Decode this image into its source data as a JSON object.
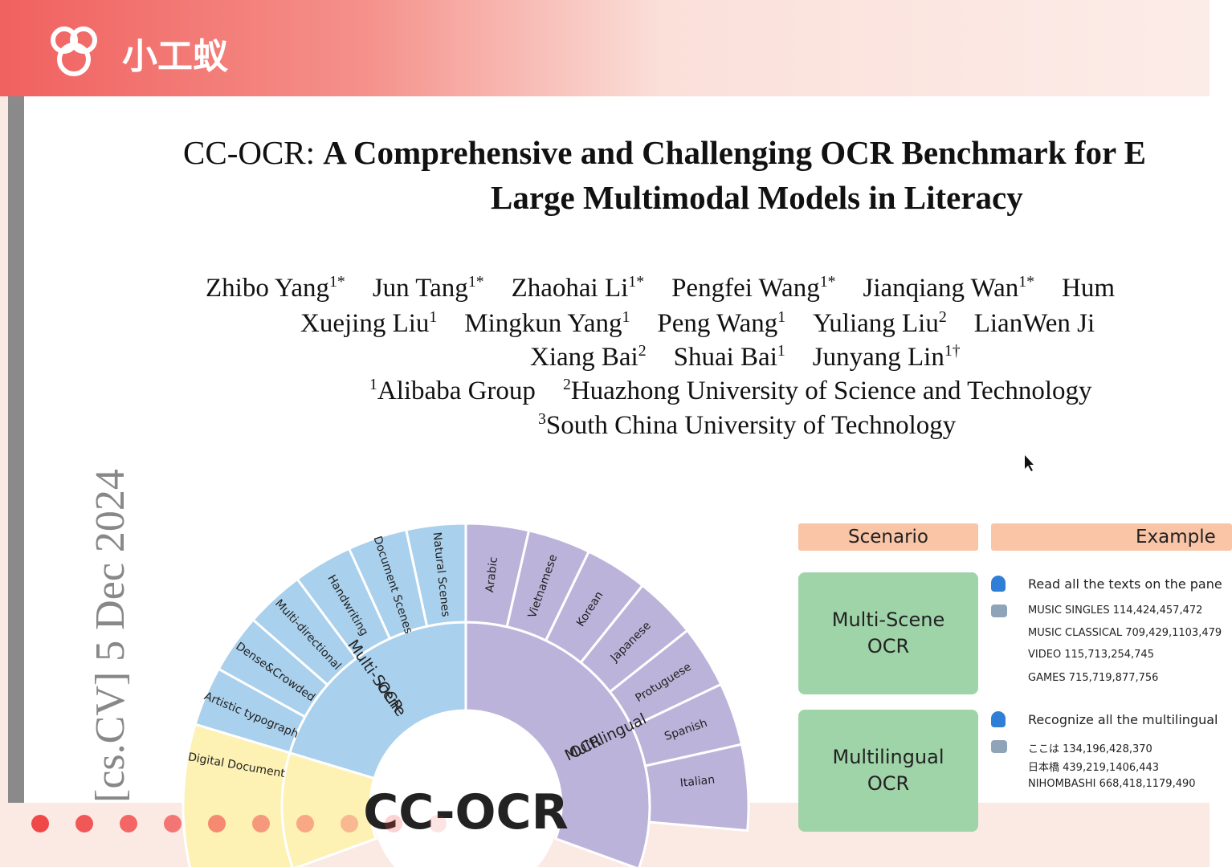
{
  "header": {
    "brand": "小工蚁"
  },
  "paper": {
    "title": {
      "prefix": "CC-OCR:",
      "line1": "A Comprehensive and Challenging OCR Benchmark for E",
      "line2": "Large Multimodal Models in Literacy"
    },
    "authors": [
      [
        {
          "name": "Zhibo Yang",
          "sup": "1*"
        },
        {
          "name": "Jun Tang",
          "sup": "1*"
        },
        {
          "name": "Zhaohai Li",
          "sup": "1*"
        },
        {
          "name": "Pengfei Wang",
          "sup": "1*"
        },
        {
          "name": "Jianqiang Wan",
          "sup": "1*"
        },
        {
          "name": "Hum"
        }
      ],
      [
        {
          "name": "Xuejing Liu",
          "sup": "1"
        },
        {
          "name": "Mingkun Yang",
          "sup": "1"
        },
        {
          "name": "Peng Wang",
          "sup": "1"
        },
        {
          "name": "Yuliang Liu",
          "sup": "2"
        },
        {
          "name": "LianWen Ji"
        }
      ],
      [
        {
          "name": "Xiang Bai",
          "sup": "2"
        },
        {
          "name": "Shuai Bai",
          "sup": "1"
        },
        {
          "name": "Junyang Lin",
          "sup": "1†"
        }
      ]
    ],
    "affiliations": [
      [
        {
          "sup": "1",
          "name": "Alibaba Group"
        },
        {
          "sup": "2",
          "name": "Huazhong University of Science and Technology"
        }
      ],
      [
        {
          "sup": "3",
          "name": "South China University of Technology"
        }
      ]
    ],
    "arxiv_stamp": "[cs.CV]  5 Dec 2024"
  },
  "figure": {
    "center": "CC-OCR",
    "inner": [
      {
        "lines": [
          "Multi-Scene",
          "OCR"
        ]
      },
      {
        "lines": [
          "Multilingual",
          "OCR"
        ]
      }
    ],
    "outer_left": [
      "Natural Scenes",
      "Document Scenes",
      "Handwriting",
      "Multi-directional",
      "Dense&Crowded",
      "Artistic typograph",
      "Digital Document"
    ],
    "outer_right": [
      "Arabic",
      "Vietnamese",
      "Korean",
      "Japanese",
      "Protuguese",
      "Spanish",
      "Italian"
    ]
  },
  "table": {
    "headers": [
      "Scenario",
      "Example"
    ],
    "rows": [
      {
        "scenario": [
          "Multi-Scene",
          "OCR"
        ],
        "prompt": "Read all the texts on the pane",
        "answer": [
          "MUSIC SINGLES 114,424,457,472",
          "MUSIC CLASSICAL 709,429,1103,479",
          "VIDEO 115,713,254,745",
          "GAMES 715,719,877,756"
        ]
      },
      {
        "scenario": [
          "Multilingual",
          "OCR"
        ],
        "prompt": "Recognize all the multilingual",
        "answer": [
          "ここは 134,196,428,370",
          "日本橋 439,219,1406,443",
          "NIHOMBASHI 668,418,1179,490"
        ]
      }
    ]
  }
}
